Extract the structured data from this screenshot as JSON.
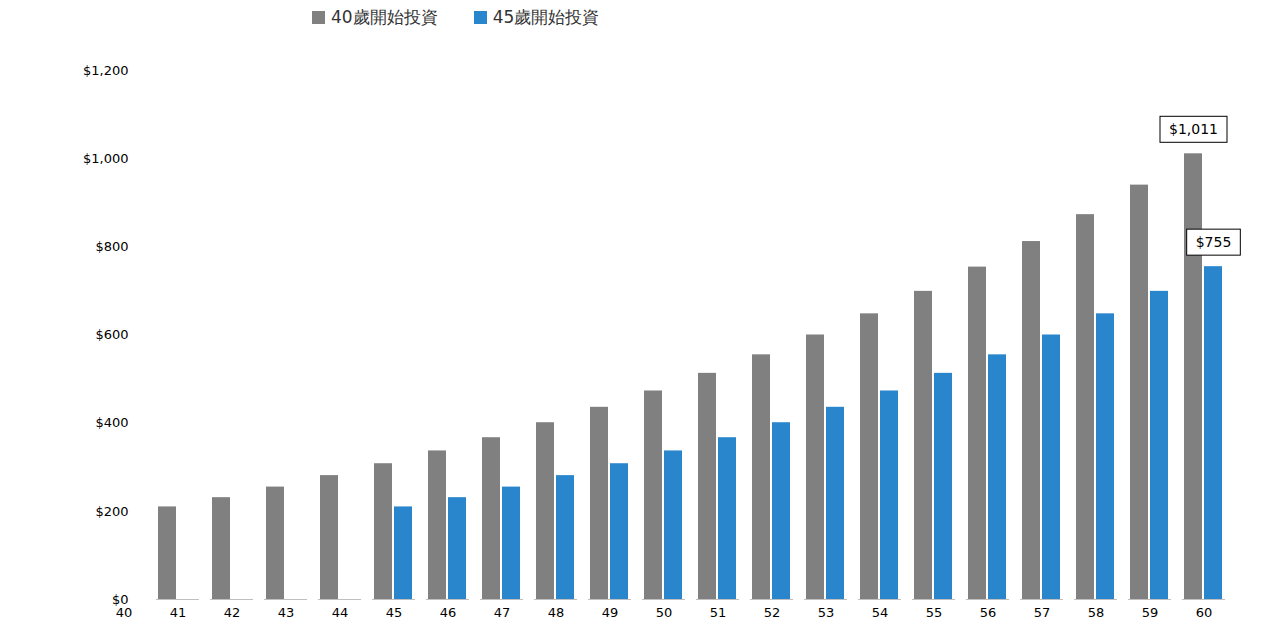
{
  "chart_data": {
    "type": "bar",
    "categories": [
      "40",
      "41",
      "42",
      "43",
      "44",
      "45",
      "46",
      "47",
      "48",
      "49",
      "50",
      "51",
      "52",
      "53",
      "54",
      "55",
      "56",
      "57",
      "58",
      "59",
      "60"
    ],
    "series": [
      {
        "name": "40歲開始投資",
        "color": "#808080",
        "values": [
          null,
          210,
          231,
          255,
          281,
          308,
          337,
          367,
          401,
          436,
          473,
          513,
          555,
          600,
          648,
          699,
          754,
          812,
          873,
          940,
          1011
        ]
      },
      {
        "name": "45歲開始投資",
        "color": "#2986cc",
        "values": [
          null,
          null,
          null,
          null,
          null,
          210,
          231,
          255,
          281,
          308,
          337,
          367,
          401,
          436,
          473,
          513,
          555,
          600,
          648,
          699,
          755
        ]
      }
    ],
    "ylim": [
      0,
      1200
    ],
    "yticks": [
      {
        "value": 0,
        "label": "$0"
      },
      {
        "value": 200,
        "label": "$200"
      },
      {
        "value": 400,
        "label": "$400"
      },
      {
        "value": 600,
        "label": "$600"
      },
      {
        "value": 800,
        "label": "$800"
      },
      {
        "value": 1000,
        "label": "$1,000"
      },
      {
        "value": 1200,
        "label": "$1,200"
      }
    ],
    "grid": false,
    "legend": "top",
    "annotations": [
      {
        "series": "40歲開始投資",
        "category": "60",
        "text": "$1,011"
      },
      {
        "series": "45歲開始投資",
        "category": "60",
        "text": "$755"
      }
    ]
  }
}
